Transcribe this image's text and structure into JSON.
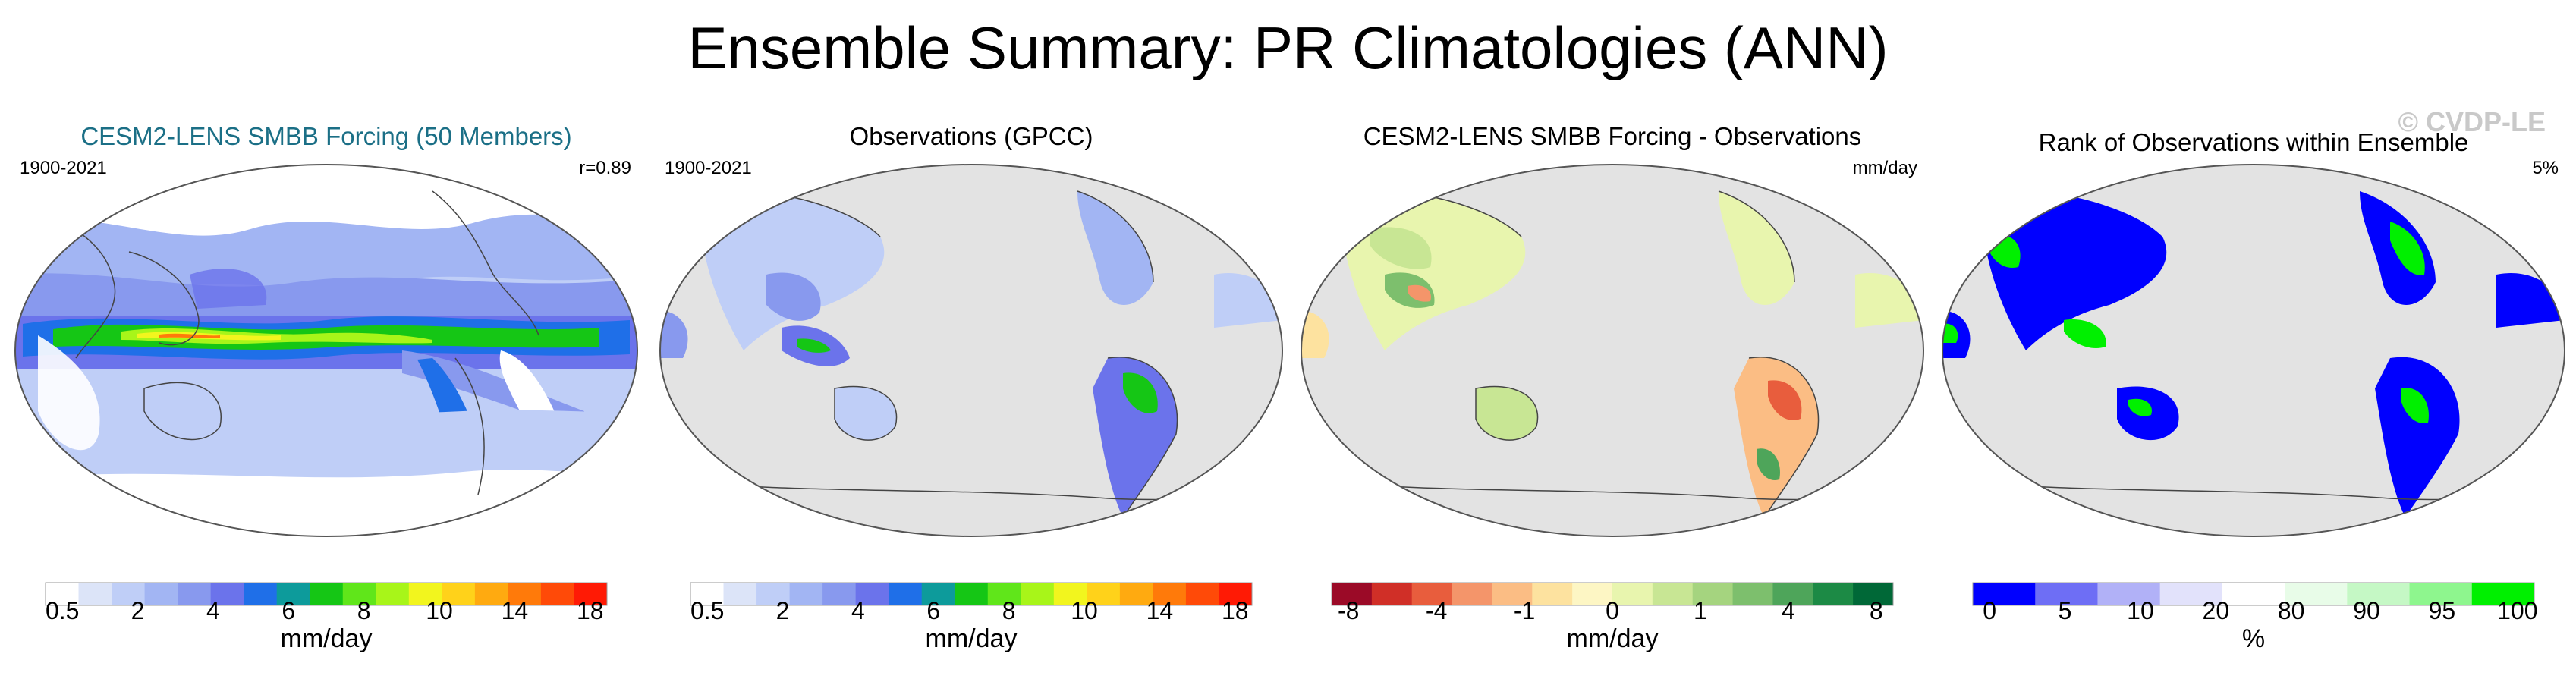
{
  "title": "Ensemble Summary: PR Climatologies (ANN)",
  "watermark": "© CVDP-LE",
  "colors": {
    "map_background": "#e3e3e3",
    "coastline": "#444444",
    "precip_scale": [
      "#ffffff",
      "#dce4f8",
      "#bfcef7",
      "#a2b5f3",
      "#8899ee",
      "#6b73eb",
      "#1f6fe8",
      "#0d9b9b",
      "#15c615",
      "#60e61a",
      "#a8f519",
      "#f2f51e",
      "#ffd21a",
      "#ffaa10",
      "#ff7a0a",
      "#ff4a08",
      "#ff1a05"
    ],
    "diff_scale": [
      "#9b0a27",
      "#d02f27",
      "#e85d3d",
      "#f4956a",
      "#fbbd84",
      "#fde29f",
      "#fdf6c4",
      "#e8f5ae",
      "#c8e694",
      "#a5d47f",
      "#7dbf6d",
      "#4ea55a",
      "#1c8a45",
      "#006837"
    ],
    "rank_scale": [
      "#0000ff",
      "#6e6ef5",
      "#b1b1f7",
      "#e2e2fb",
      "#ffffff",
      "#e8fce8",
      "#c5f8c5",
      "#8ef68e",
      "#00f000"
    ]
  },
  "panels": [
    {
      "title": "CESM2-LENS SMBB Forcing (50 Members)",
      "left_label": "1900-2021",
      "right_label": "r=0.89",
      "colorbar": {
        "unit": "mm/day",
        "ticks": [
          "0.5",
          "2",
          "4",
          "6",
          "8",
          "10",
          "14",
          "18"
        ]
      }
    },
    {
      "title": "Observations (GPCC)",
      "left_label": "1900-2021",
      "right_label": "",
      "colorbar": {
        "unit": "mm/day",
        "ticks": [
          "0.5",
          "2",
          "4",
          "6",
          "8",
          "10",
          "14",
          "18"
        ]
      }
    },
    {
      "title": "CESM2-LENS SMBB Forcing - Observations",
      "left_label": "",
      "right_label": "mm/day",
      "colorbar": {
        "unit": "mm/day",
        "ticks": [
          "-8",
          "-4",
          "-1",
          "0",
          "1",
          "4",
          "8"
        ]
      }
    },
    {
      "title": "Rank of Observations within Ensemble",
      "left_label": "",
      "right_label": "5%",
      "colorbar": {
        "unit": "%",
        "ticks": [
          "0",
          "5",
          "10",
          "20",
          "80",
          "90",
          "95",
          "100"
        ]
      }
    }
  ],
  "chart_data": [
    {
      "type": "heatmap",
      "title": "CESM2-LENS SMBB Forcing (50 Members)",
      "period": "1900-2021",
      "pattern_correlation": "r=0.89",
      "colorbar_levels": [
        0.5,
        1,
        2,
        3,
        4,
        5,
        6,
        7,
        8,
        9,
        10,
        12,
        14,
        16,
        18
      ],
      "unit": "mm/day"
    },
    {
      "type": "heatmap",
      "title": "Observations (GPCC)",
      "period": "1900-2021",
      "colorbar_levels": [
        0.5,
        1,
        2,
        3,
        4,
        5,
        6,
        7,
        8,
        9,
        10,
        12,
        14,
        16,
        18
      ],
      "unit": "mm/day"
    },
    {
      "type": "heatmap",
      "title": "CESM2-LENS SMBB Forcing - Observations",
      "colorbar_levels": [
        -8,
        -6,
        -4,
        -2,
        -1,
        -0.5,
        0,
        0.5,
        1,
        2,
        4,
        6,
        8
      ],
      "unit": "mm/day"
    },
    {
      "type": "heatmap",
      "title": "Rank of Observations within Ensemble",
      "summary": "5%",
      "colorbar_levels": [
        0,
        5,
        10,
        20,
        80,
        90,
        95,
        100
      ],
      "unit": "%"
    }
  ]
}
